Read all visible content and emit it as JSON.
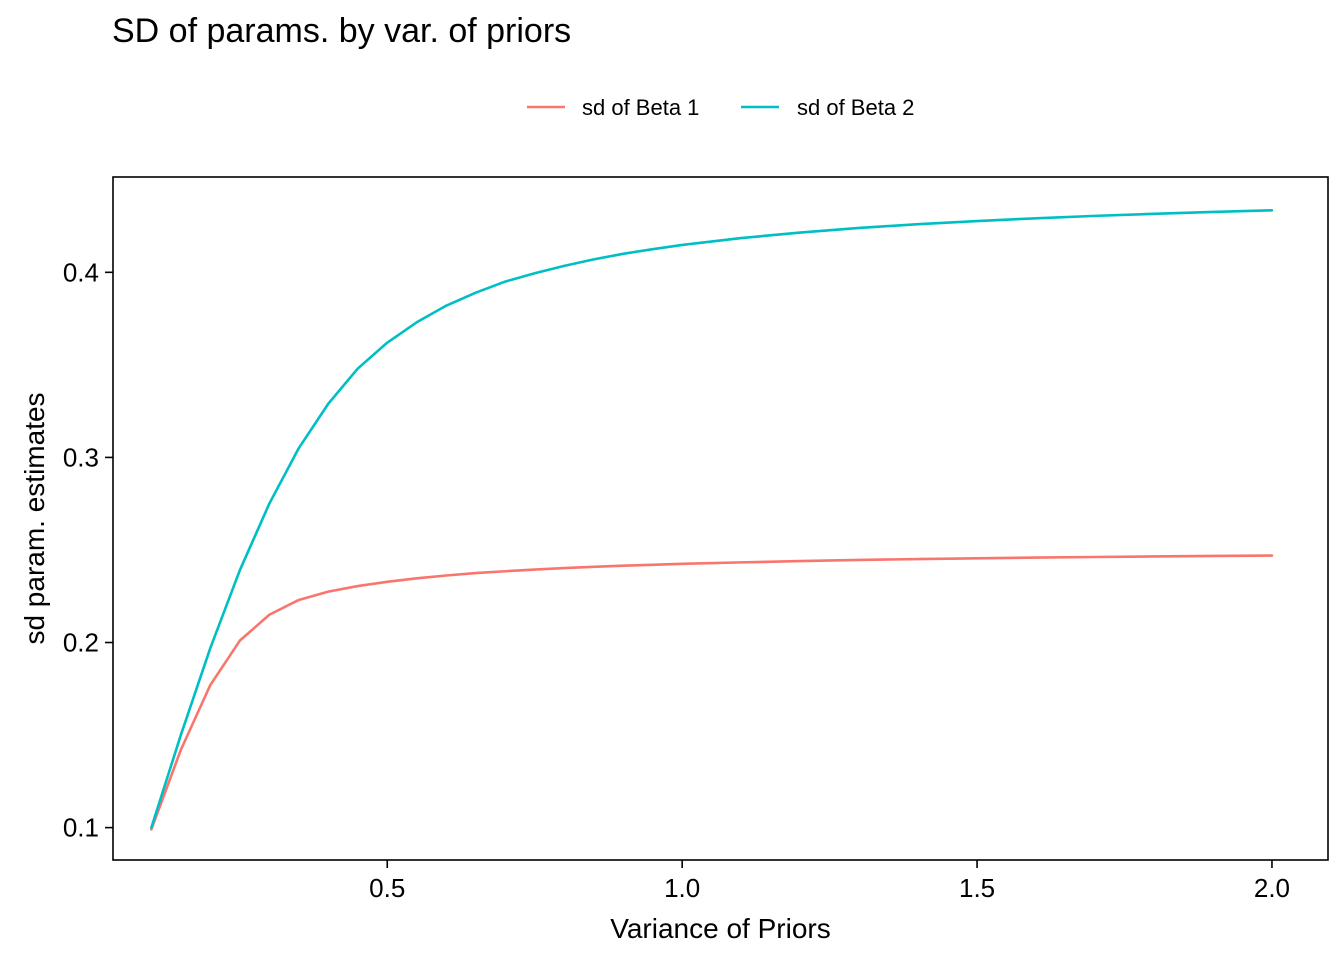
{
  "chart_data": {
    "type": "line",
    "title": "SD of params. by var. of priors",
    "xlabel": "Variance of Priors",
    "ylabel": "sd param. estimates",
    "xlim": [
      0.035,
      2.095
    ],
    "ylim": [
      0.0825,
      0.4515
    ],
    "xticks": [
      0.5,
      1.0,
      1.5,
      2.0
    ],
    "xtick_labels": [
      "0.5",
      "1.0",
      "1.5",
      "2.0"
    ],
    "yticks": [
      0.1,
      0.2,
      0.3,
      0.4
    ],
    "ytick_labels": [
      "0.1",
      "0.2",
      "0.3",
      "0.4"
    ],
    "grid": false,
    "legend_position": "top",
    "series": [
      {
        "name": "sd of Beta 1",
        "color": "#F8766D",
        "x": [
          0.1,
          0.15,
          0.2,
          0.25,
          0.3,
          0.35,
          0.4,
          0.45,
          0.5,
          0.55,
          0.6,
          0.65,
          0.7,
          0.75,
          0.8,
          0.85,
          0.9,
          0.95,
          1.0,
          1.1,
          1.2,
          1.3,
          1.4,
          1.5,
          1.6,
          1.7,
          1.8,
          1.9,
          2.0
        ],
        "y": [
          0.099,
          0.142,
          0.177,
          0.201,
          0.215,
          0.223,
          0.2275,
          0.2305,
          0.2328,
          0.2347,
          0.2362,
          0.2375,
          0.2385,
          0.2394,
          0.2402,
          0.2409,
          0.2415,
          0.242,
          0.2425,
          0.2433,
          0.244,
          0.2446,
          0.2451,
          0.2455,
          0.2459,
          0.2462,
          0.2465,
          0.2468,
          0.247
        ]
      },
      {
        "name": "sd of Beta 2",
        "color": "#00BFC4",
        "x": [
          0.1,
          0.15,
          0.2,
          0.25,
          0.3,
          0.35,
          0.4,
          0.45,
          0.5,
          0.55,
          0.6,
          0.65,
          0.7,
          0.75,
          0.8,
          0.85,
          0.9,
          0.95,
          1.0,
          1.1,
          1.2,
          1.3,
          1.4,
          1.5,
          1.6,
          1.7,
          1.8,
          1.9,
          2.0
        ],
        "y": [
          0.1,
          0.15,
          0.197,
          0.239,
          0.275,
          0.305,
          0.329,
          0.348,
          0.362,
          0.373,
          0.382,
          0.389,
          0.395,
          0.3995,
          0.4035,
          0.407,
          0.41,
          0.4125,
          0.4148,
          0.4185,
          0.4215,
          0.424,
          0.426,
          0.4277,
          0.4292,
          0.4305,
          0.4316,
          0.4326,
          0.4335
        ]
      }
    ]
  }
}
